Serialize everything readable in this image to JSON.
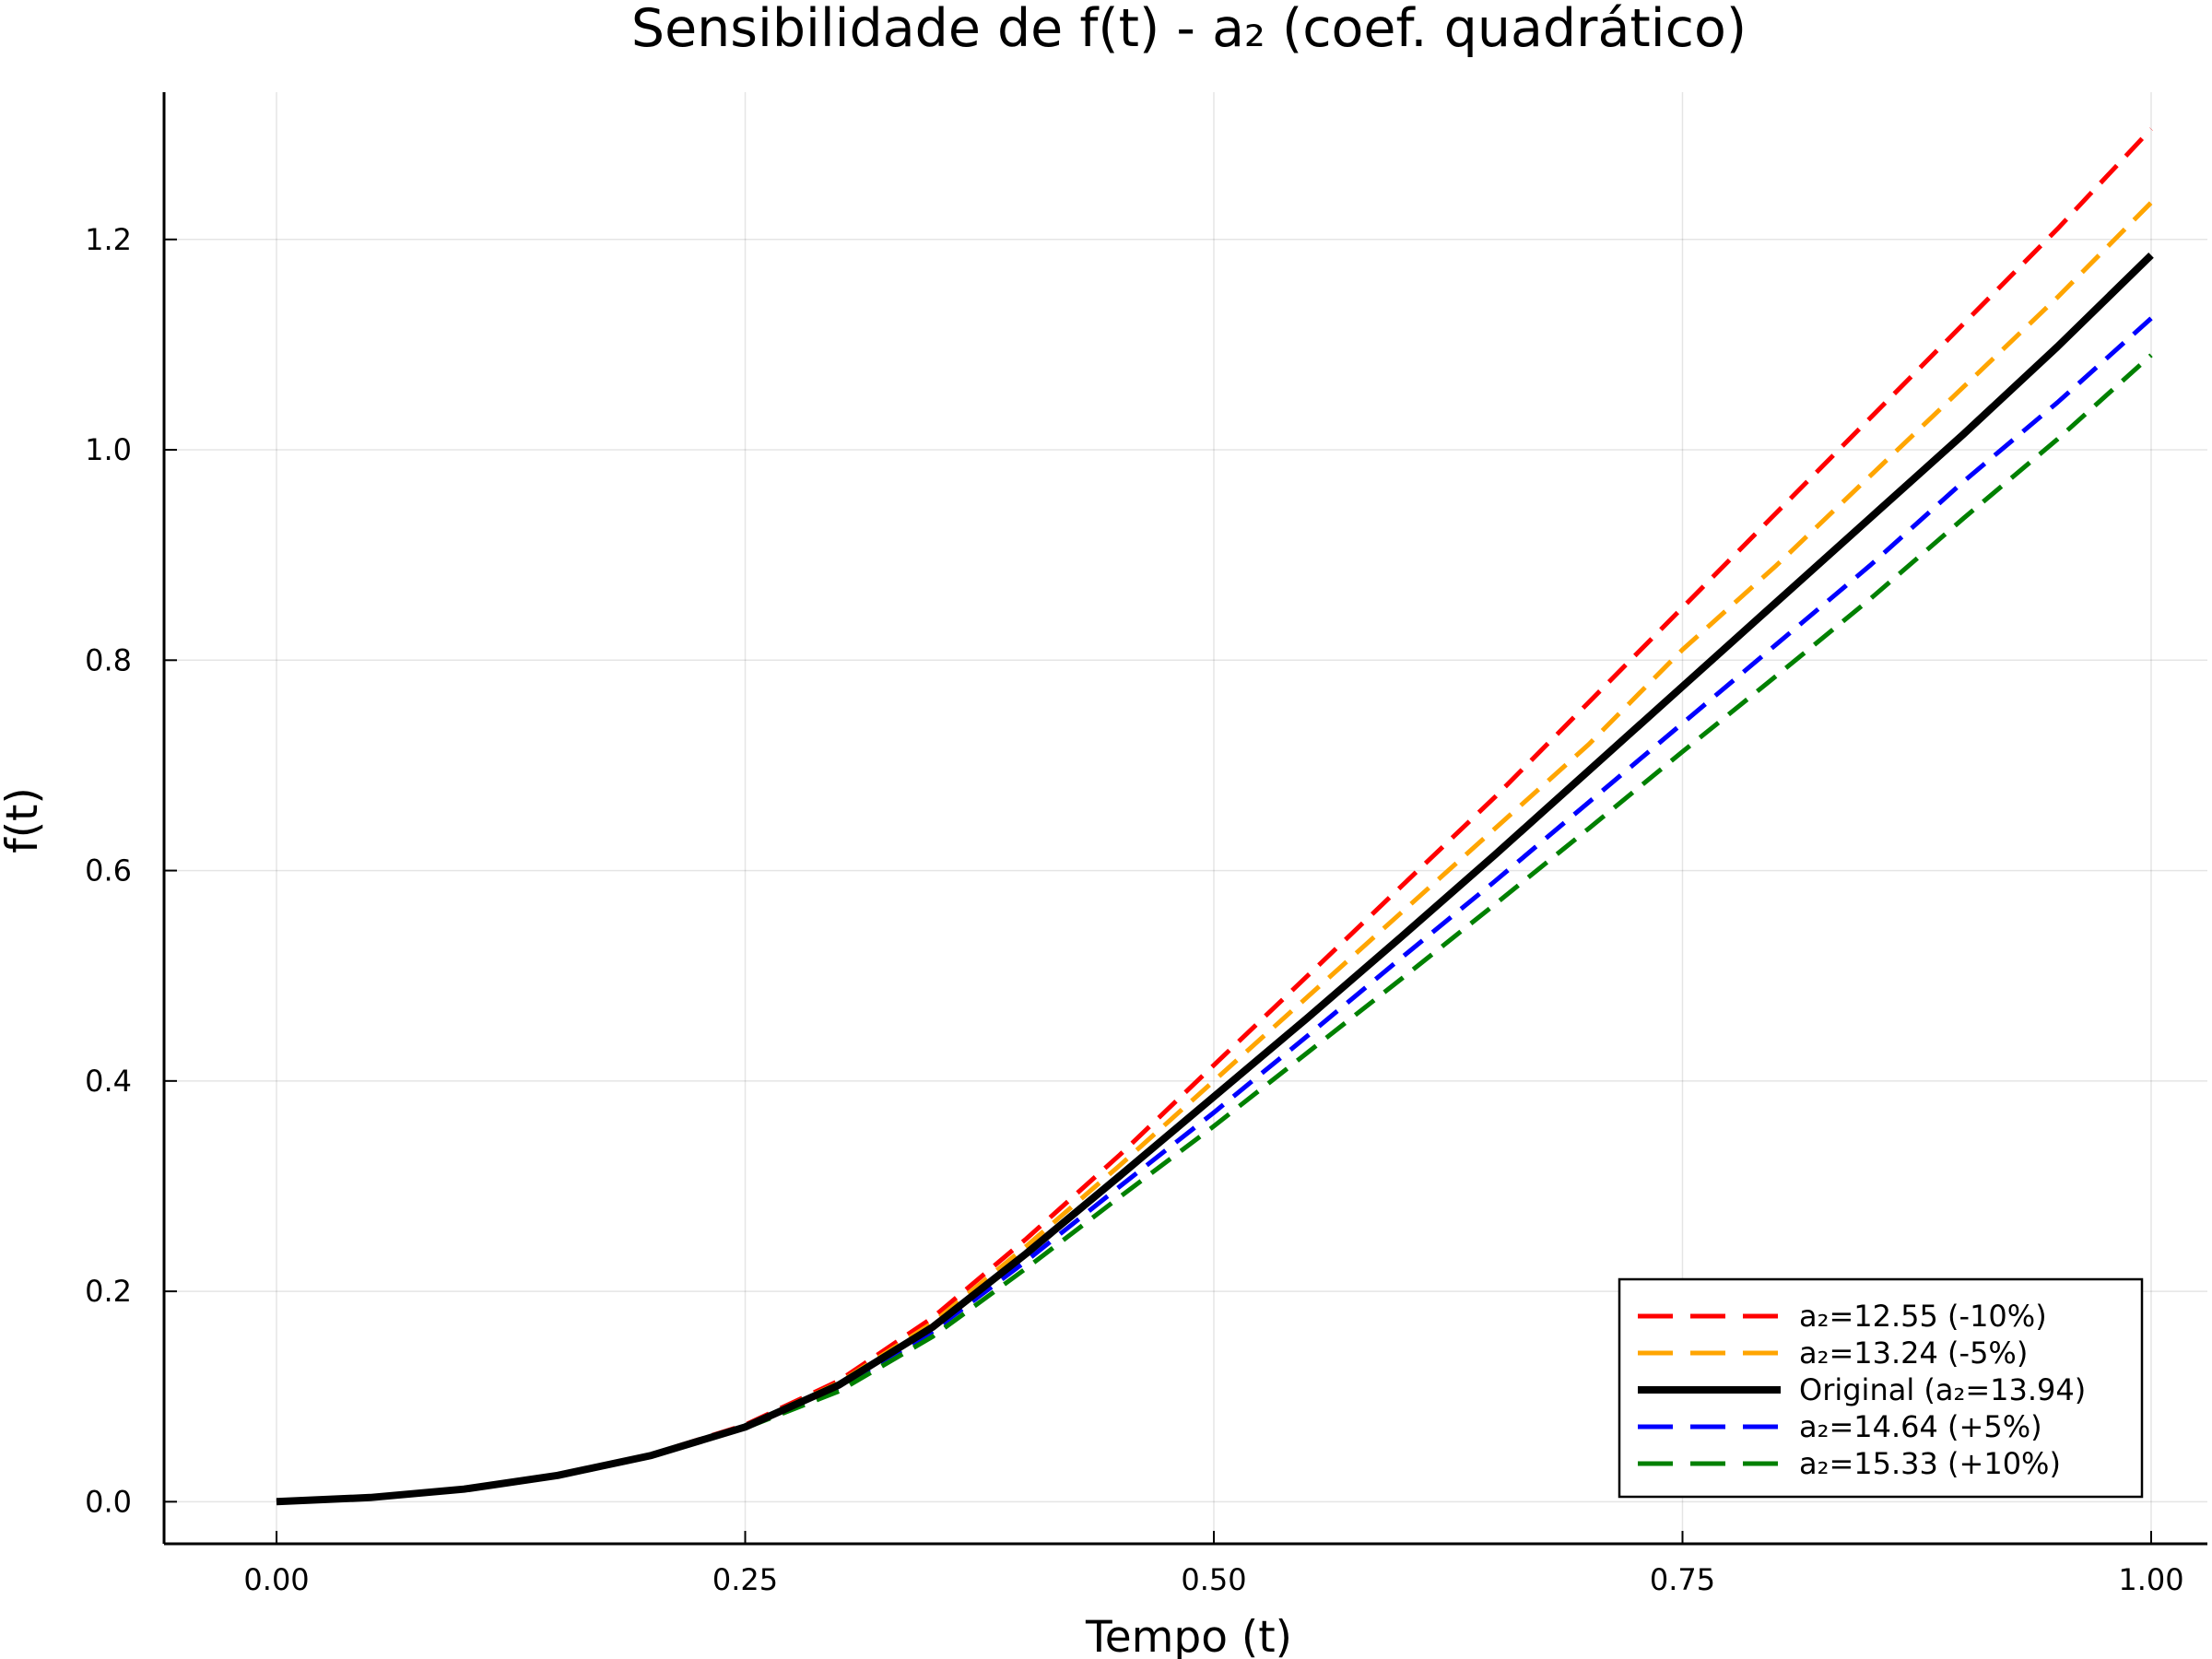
{
  "chart_data": {
    "type": "line",
    "title": "Sensibilidade de f(t) - a₂ (coef. quadrático)",
    "xlabel": "Tempo (t)",
    "ylabel": "f(t)",
    "xlim": [
      -0.06,
      1.03
    ],
    "ylim": [
      -0.04,
      1.34
    ],
    "xticks": [
      0.0,
      0.25,
      0.5,
      0.75,
      1.0
    ],
    "xtick_labels": [
      "0.00",
      "0.25",
      "0.50",
      "0.75",
      "1.00"
    ],
    "yticks": [
      0.0,
      0.2,
      0.4,
      0.6,
      0.8,
      1.0,
      1.2
    ],
    "ytick_labels": [
      "0.0",
      "0.2",
      "0.4",
      "0.6",
      "0.8",
      "1.0",
      "1.2"
    ],
    "grid": true,
    "legend_position": "bottom-right",
    "x": [
      0.0,
      0.05,
      0.1,
      0.15,
      0.2,
      0.25,
      0.3,
      0.35,
      0.4,
      0.45,
      0.5,
      0.55,
      0.6,
      0.65,
      0.7,
      0.75,
      0.8,
      0.85,
      0.9,
      0.95,
      1.0
    ],
    "series": [
      {
        "name": "a₂=12.55 (-10%)",
        "color": "#ff0000",
        "dash": true,
        "width": 5,
        "values": [
          0.0,
          0.004,
          0.012,
          0.025,
          0.045,
          0.073,
          0.115,
          0.175,
          0.25,
          0.33,
          0.415,
          0.5,
          0.585,
          0.67,
          0.76,
          0.85,
          0.94,
          1.03,
          1.12,
          1.21,
          1.305
        ]
      },
      {
        "name": "a₂=13.24 (-5%)",
        "color": "#ffa500",
        "dash": true,
        "width": 5,
        "values": [
          0.0,
          0.004,
          0.012,
          0.025,
          0.045,
          0.072,
          0.113,
          0.17,
          0.243,
          0.32,
          0.4,
          0.48,
          0.56,
          0.64,
          0.72,
          0.81,
          0.89,
          0.975,
          1.06,
          1.145,
          1.235
        ]
      },
      {
        "name": "Original (a₂=13.94)",
        "color": "#000000",
        "dash": false,
        "width": 8,
        "values": [
          0.0,
          0.004,
          0.012,
          0.025,
          0.044,
          0.071,
          0.111,
          0.166,
          0.236,
          0.31,
          0.385,
          0.46,
          0.537,
          0.615,
          0.695,
          0.775,
          0.855,
          0.935,
          1.015,
          1.098,
          1.185
        ]
      },
      {
        "name": "a₂=14.64 (+5%)",
        "color": "#0000ff",
        "dash": true,
        "width": 5,
        "values": [
          0.0,
          0.004,
          0.012,
          0.025,
          0.044,
          0.071,
          0.108,
          0.162,
          0.229,
          0.3,
          0.37,
          0.443,
          0.517,
          0.59,
          0.665,
          0.74,
          0.815,
          0.89,
          0.97,
          1.045,
          1.125
        ]
      },
      {
        "name": "a₂=15.33 (+10%)",
        "color": "#008000",
        "dash": true,
        "width": 5,
        "values": [
          0.0,
          0.004,
          0.012,
          0.024,
          0.043,
          0.07,
          0.105,
          0.157,
          0.222,
          0.29,
          0.357,
          0.427,
          0.497,
          0.568,
          0.64,
          0.713,
          0.785,
          0.858,
          0.935,
          1.01,
          1.09
        ]
      }
    ]
  }
}
